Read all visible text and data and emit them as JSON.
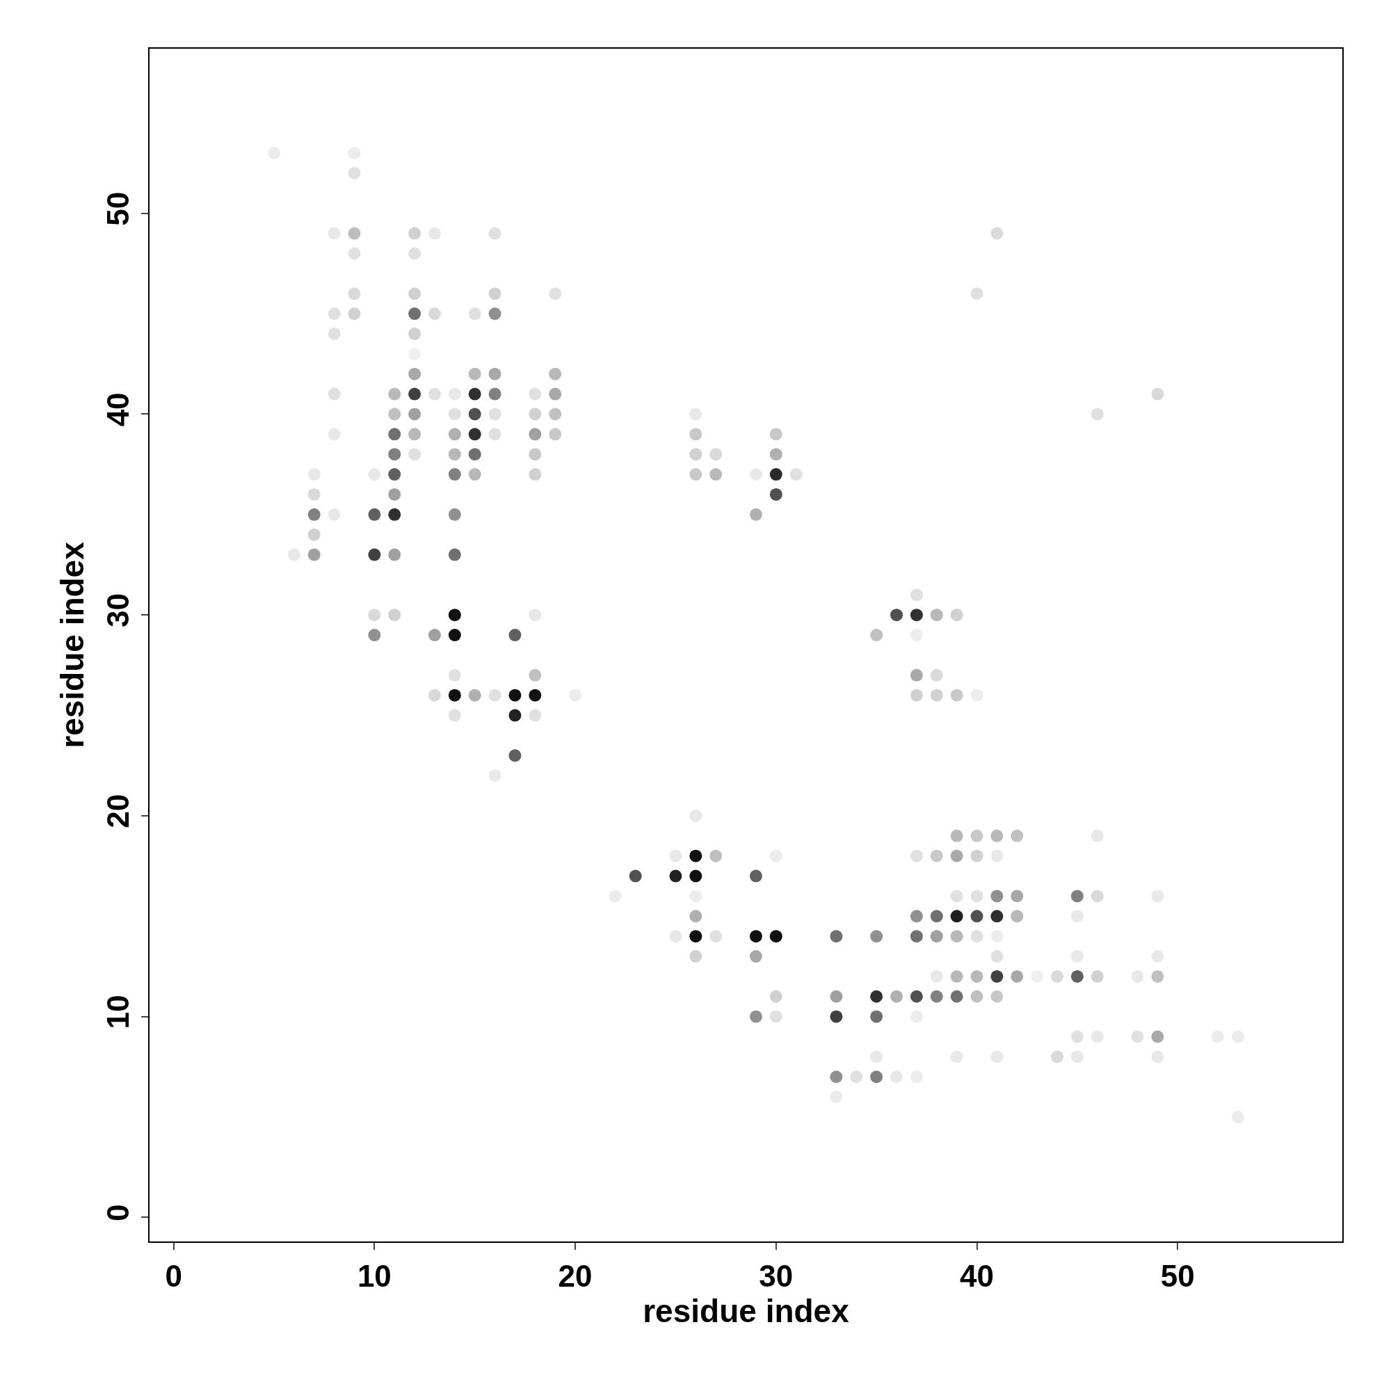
{
  "chart_data": {
    "type": "scatter",
    "xlabel": "residue index",
    "ylabel": "residue index",
    "xlim": [
      -1.2,
      58.2
    ],
    "ylim": [
      -1.2,
      58.2
    ],
    "xticks": [
      0,
      10,
      20,
      30,
      40,
      50
    ],
    "yticks": [
      0,
      10,
      20,
      30,
      40,
      50
    ],
    "grid": false,
    "marker": "circle",
    "series": [
      {
        "x": [
          5,
          9,
          9,
          8,
          9,
          12,
          13,
          16,
          41,
          9,
          12,
          9,
          12,
          16,
          19,
          40,
          8,
          9,
          12,
          13,
          15,
          16,
          8,
          12,
          12,
          12,
          15,
          16,
          19,
          8,
          11,
          12,
          13,
          14,
          15,
          16,
          18,
          19,
          49,
          11,
          12,
          14,
          15,
          16,
          18,
          19,
          26,
          46,
          8,
          11,
          12,
          14,
          15,
          16,
          18,
          19,
          26,
          30,
          11,
          12,
          14,
          15,
          18,
          26,
          27,
          30,
          7,
          10,
          11,
          14,
          15,
          18,
          26,
          27,
          29,
          30,
          31,
          7,
          11,
          30,
          7,
          8,
          10,
          11,
          14,
          29,
          7,
          6,
          7,
          10,
          11,
          14,
          37,
          10,
          11,
          14,
          18,
          36,
          37,
          38,
          39,
          10,
          13,
          14,
          17,
          35,
          37,
          14,
          18,
          37,
          38,
          13,
          14,
          15,
          16,
          17,
          18,
          20,
          37,
          38,
          39,
          40,
          14,
          17,
          18,
          17,
          16,
          26,
          39,
          40,
          41,
          42,
          46,
          25,
          26,
          27,
          30,
          37,
          38,
          39,
          40,
          41,
          23,
          25,
          26,
          29,
          22,
          26,
          39,
          40,
          41,
          42,
          45,
          46,
          49,
          26,
          37,
          38,
          39,
          40,
          41,
          42,
          45,
          25,
          26,
          27,
          29,
          30,
          33,
          35,
          37,
          38,
          39,
          40,
          41,
          26,
          29,
          41,
          45,
          49,
          38,
          39,
          40,
          41,
          42,
          43,
          44,
          45,
          46,
          48,
          49,
          30,
          33,
          35,
          36,
          37,
          38,
          39,
          40,
          41,
          29,
          30,
          33,
          35,
          37,
          45,
          46,
          48,
          49,
          52,
          53,
          35,
          39,
          41,
          44,
          45,
          49,
          33,
          34,
          35,
          36,
          37,
          33,
          53
        ],
        "values": [
          53,
          53,
          52,
          49,
          49,
          49,
          49,
          49,
          49,
          48,
          48,
          46,
          46,
          46,
          46,
          46,
          45,
          45,
          45,
          45,
          45,
          45,
          44,
          44,
          43,
          42,
          42,
          42,
          42,
          41,
          41,
          41,
          41,
          41,
          41,
          41,
          41,
          41,
          41,
          40,
          40,
          40,
          40,
          40,
          40,
          40,
          40,
          40,
          39,
          39,
          39,
          39,
          39,
          39,
          39,
          39,
          39,
          39,
          38,
          38,
          38,
          38,
          38,
          38,
          38,
          38,
          37,
          37,
          37,
          37,
          37,
          37,
          37,
          37,
          37,
          37,
          37,
          36,
          36,
          36,
          35,
          35,
          35,
          35,
          35,
          35,
          34,
          33,
          33,
          33,
          33,
          33,
          31,
          30,
          30,
          30,
          30,
          30,
          30,
          30,
          30,
          29,
          29,
          29,
          29,
          29,
          29,
          27,
          27,
          27,
          27,
          26,
          26,
          26,
          26,
          26,
          26,
          26,
          26,
          26,
          26,
          26,
          25,
          25,
          25,
          23,
          22,
          20,
          19,
          19,
          19,
          19,
          19,
          18,
          18,
          18,
          18,
          18,
          18,
          18,
          18,
          18,
          17,
          17,
          17,
          17,
          16,
          16,
          16,
          16,
          16,
          16,
          16,
          16,
          16,
          15,
          15,
          15,
          15,
          15,
          15,
          15,
          15,
          14,
          14,
          14,
          14,
          14,
          14,
          14,
          14,
          14,
          14,
          14,
          14,
          13,
          13,
          13,
          13,
          13,
          12,
          12,
          12,
          12,
          12,
          12,
          12,
          12,
          12,
          12,
          12,
          11,
          11,
          11,
          11,
          11,
          11,
          11,
          11,
          11,
          10,
          10,
          10,
          10,
          10,
          9,
          9,
          9,
          9,
          9,
          9,
          8,
          8,
          8,
          8,
          8,
          8,
          7,
          7,
          7,
          7,
          7,
          6,
          5
        ],
        "colors": [
          "#ececec",
          "#ececec",
          "#e0e0e0",
          "#e8e8e8",
          "#bdbdbd",
          "#d0d0d0",
          "#e8e8e8",
          "#e0e0e0",
          "#d9d9d9",
          "#e0e0e0",
          "#e0e0e0",
          "#d9d9d9",
          "#d0d0d0",
          "#d0d0d0",
          "#e0e0e0",
          "#e0e0e0",
          "#e0e0e0",
          "#d0d0d0",
          "#707070",
          "#d9d9d9",
          "#e0e0e0",
          "#909090",
          "#e0e0e0",
          "#d0d0d0",
          "#f0f0f0",
          "#a8a8a8",
          "#b8b8b8",
          "#a8a8a8",
          "#b8b8b8",
          "#e0e0e0",
          "#b8b8b8",
          "#404040",
          "#e0e0e0",
          "#e8e8e8",
          "#303030",
          "#808080",
          "#e0e0e0",
          "#a8a8a8",
          "#d9d9d9",
          "#c0c0c0",
          "#a0a0a0",
          "#e0e0e0",
          "#505050",
          "#e0e0e0",
          "#d0d0d0",
          "#c0c0c0",
          "#e8e8e8",
          "#e0e0e0",
          "#e8e8e8",
          "#707070",
          "#b8b8b8",
          "#b0b0b0",
          "#303030",
          "#e0e0e0",
          "#a0a0a0",
          "#c8c8c8",
          "#c8c8c8",
          "#c8c8c8",
          "#808080",
          "#e0e0e0",
          "#b8b8b8",
          "#707070",
          "#c8c8c8",
          "#d0d0d0",
          "#d9d9d9",
          "#b0b0b0",
          "#e8e8e8",
          "#e8e8e8",
          "#606060",
          "#808080",
          "#b8b8b8",
          "#d0d0d0",
          "#c8c8c8",
          "#b8b8b8",
          "#e8e8e8",
          "#2a2a2a",
          "#e0e0e0",
          "#d9d9d9",
          "#a0a0a0",
          "#505050",
          "#808080",
          "#e8e8e8",
          "#606060",
          "#303030",
          "#909090",
          "#b0b0b0",
          "#d0d0d0",
          "#e8e8e8",
          "#a0a0a0",
          "#404040",
          "#a0a0a0",
          "#707070",
          "#e0e0e0",
          "#d9d9d9",
          "#d0d0d0",
          "#111111",
          "#e8e8e8",
          "#505050",
          "#303030",
          "#b8b8b8",
          "#d0d0d0",
          "#909090",
          "#a0a0a0",
          "#111111",
          "#606060",
          "#c0c0c0",
          "#ececec",
          "#e0e0e0",
          "#c0c0c0",
          "#a8a8a8",
          "#d9d9d9",
          "#d9d9d9",
          "#111111",
          "#b0b0b0",
          "#e0e0e0",
          "#111111",
          "#111111",
          "#ececec",
          "#d0d0d0",
          "#d0d0d0",
          "#c8c8c8",
          "#ececec",
          "#e0e0e0",
          "#222222",
          "#e0e0e0",
          "#606060",
          "#e8e8e8",
          "#e8e8e8",
          "#b8b8b8",
          "#c8c8c8",
          "#b8b8b8",
          "#c0c0c0",
          "#e8e8e8",
          "#e8e8e8",
          "#111111",
          "#c0c0c0",
          "#ececec",
          "#e0e0e0",
          "#c8c8c8",
          "#a8a8a8",
          "#d0d0d0",
          "#e8e8e8",
          "#505050",
          "#222222",
          "#111111",
          "#606060",
          "#ececec",
          "#ececec",
          "#e0e0e0",
          "#e0e0e0",
          "#909090",
          "#a8a8a8",
          "#808080",
          "#d9d9d9",
          "#e8e8e8",
          "#b0b0b0",
          "#909090",
          "#707070",
          "#202020",
          "#505050",
          "#303030",
          "#b8b8b8",
          "#e8e8e8",
          "#e8e8e8",
          "#111111",
          "#e0e0e0",
          "#111111",
          "#111111",
          "#707070",
          "#909090",
          "#707070",
          "#a0a0a0",
          "#b8b8b8",
          "#e0e0e0",
          "#ececec",
          "#d0d0d0",
          "#a8a8a8",
          "#e0e0e0",
          "#e8e8e8",
          "#e8e8e8",
          "#e8e8e8",
          "#b8b8b8",
          "#b8b8b8",
          "#404040",
          "#a8a8a8",
          "#f0f0f0",
          "#d9d9d9",
          "#606060",
          "#d0d0d0",
          "#e8e8e8",
          "#c0c0c0",
          "#d0d0d0",
          "#a0a0a0",
          "#303030",
          "#b0b0b0",
          "#505050",
          "#808080",
          "#707070",
          "#c0c0c0",
          "#c8c8c8",
          "#909090",
          "#e0e0e0",
          "#404040",
          "#707070",
          "#ececec",
          "#e0e0e0",
          "#e8e8e8",
          "#e0e0e0",
          "#a8a8a8",
          "#ececec",
          "#ececec",
          "#e8e8e8",
          "#e8e8e8",
          "#e8e8e8",
          "#d9d9d9",
          "#e8e8e8",
          "#e8e8e8",
          "#909090",
          "#e0e0e0",
          "#808080",
          "#e8e8e8",
          "#ececec",
          "#ececec",
          "#ececec"
        ]
      }
    ]
  }
}
